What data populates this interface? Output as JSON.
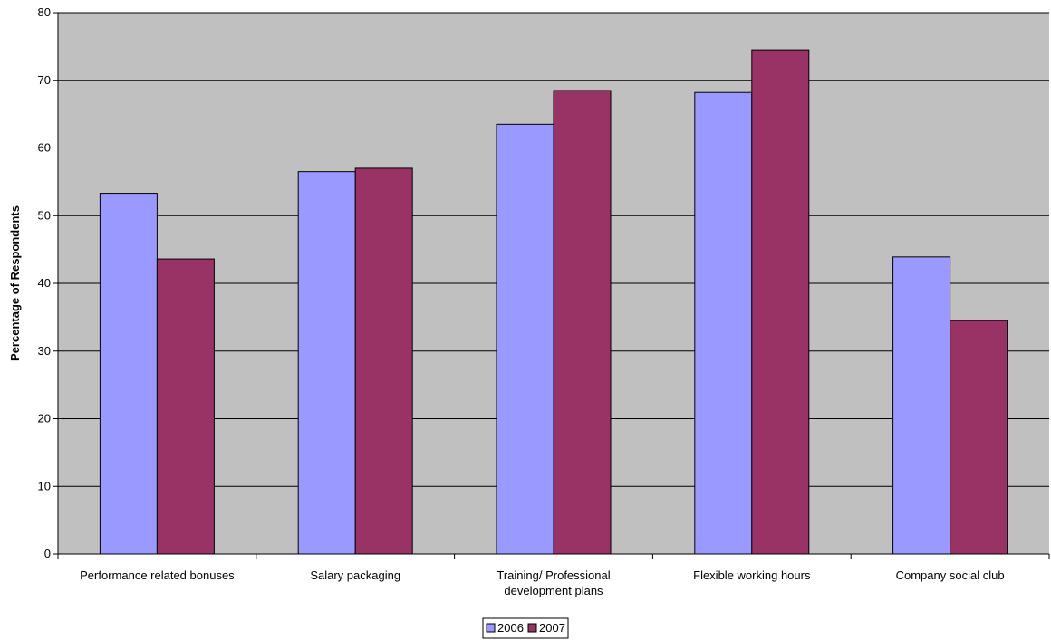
{
  "chart_data": {
    "type": "bar",
    "title": "",
    "xlabel": "",
    "ylabel": "Percentage of Respondents",
    "ylim": [
      0,
      80
    ],
    "yticks": [
      0,
      10,
      20,
      30,
      40,
      50,
      60,
      70,
      80
    ],
    "grid": true,
    "legend_position": "bottom",
    "plot_background": "#C0C0C0",
    "categories": [
      [
        "Performance related bonuses"
      ],
      [
        "Salary packaging"
      ],
      [
        "Training/ Professional",
        "development plans"
      ],
      [
        "Flexible working hours"
      ],
      [
        "Company social club"
      ]
    ],
    "series": [
      {
        "name": "2006",
        "color": "#9999FF",
        "values": [
          53.3,
          56.5,
          63.5,
          68.2,
          43.9
        ]
      },
      {
        "name": "2007",
        "color": "#993366",
        "values": [
          43.6,
          57.0,
          68.5,
          74.5,
          34.5
        ]
      }
    ]
  }
}
